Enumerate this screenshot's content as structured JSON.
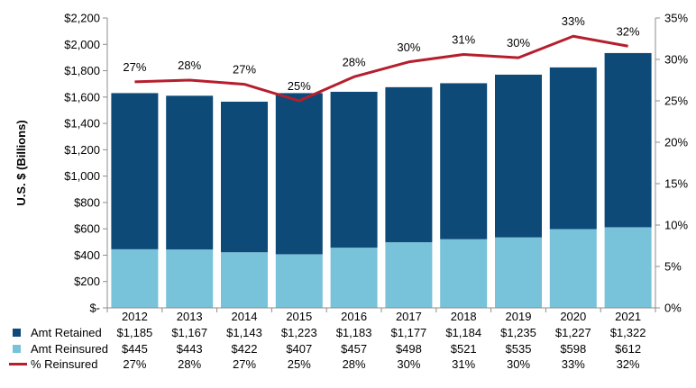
{
  "colors": {
    "retained": "#0d4a78",
    "reinsured": "#78c3d9",
    "pct_line": "#b51f2d",
    "axis": "#8c8c8c",
    "text": "#000000"
  },
  "chart_data": {
    "type": "bar",
    "stacked": true,
    "categories": [
      "2012",
      "2013",
      "2014",
      "2015",
      "2016",
      "2017",
      "2018",
      "2019",
      "2020",
      "2021"
    ],
    "series": [
      {
        "name": "Amt Retained",
        "kind": "bar",
        "values": [
          1185,
          1167,
          1143,
          1223,
          1183,
          1177,
          1184,
          1235,
          1227,
          1322
        ],
        "display": [
          "$1,185",
          "$1,167",
          "$1,143",
          "$1,223",
          "$1,183",
          "$1,177",
          "$1,184",
          "$1,235",
          "$1,227",
          "$1,322"
        ]
      },
      {
        "name": "Amt Reinsured",
        "kind": "bar",
        "values": [
          445,
          443,
          422,
          407,
          457,
          498,
          521,
          535,
          598,
          612
        ],
        "display": [
          "$445",
          "$443",
          "$422",
          "$407",
          "$457",
          "$498",
          "$521",
          "$535",
          "$598",
          "$612"
        ]
      },
      {
        "name": "% Reinsured",
        "kind": "line",
        "axis": "right",
        "values": [
          27.3,
          27.5,
          27.0,
          25.0,
          27.9,
          29.7,
          30.6,
          30.2,
          32.8,
          31.6
        ],
        "display": [
          "27%",
          "28%",
          "27%",
          "25%",
          "28%",
          "30%",
          "31%",
          "30%",
          "33%",
          "32%"
        ]
      }
    ],
    "ylabel": "U.S. $ (Billions)",
    "ylim": [
      0,
      2200
    ],
    "y_ticks": [
      "$-",
      "$200",
      "$400",
      "$600",
      "$800",
      "$1,000",
      "$1,200",
      "$1,400",
      "$1,600",
      "$1,800",
      "$2,000",
      "$2,200"
    ],
    "y2lim": [
      0,
      35
    ],
    "y2_ticks": [
      "0%",
      "5%",
      "10%",
      "15%",
      "20%",
      "25%",
      "30%",
      "35%"
    ],
    "grid": false,
    "legend": "data-table-below"
  }
}
